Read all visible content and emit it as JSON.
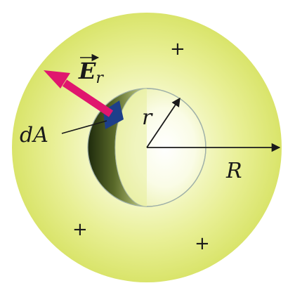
{
  "labels": {
    "field": "E",
    "field_subscript": "r",
    "area_element": "dA",
    "inner_radius": "r",
    "outer_radius": "R"
  },
  "charges": [
    "+",
    "+",
    "+"
  ],
  "colors": {
    "sphere_outer": "#dfe97a",
    "sphere_inner": "#fbfde8",
    "shell_dark": "#2c3a12",
    "patch": "#1d3f8a",
    "field_arrow": "#e0166e",
    "outline": "#1a1a1a"
  }
}
